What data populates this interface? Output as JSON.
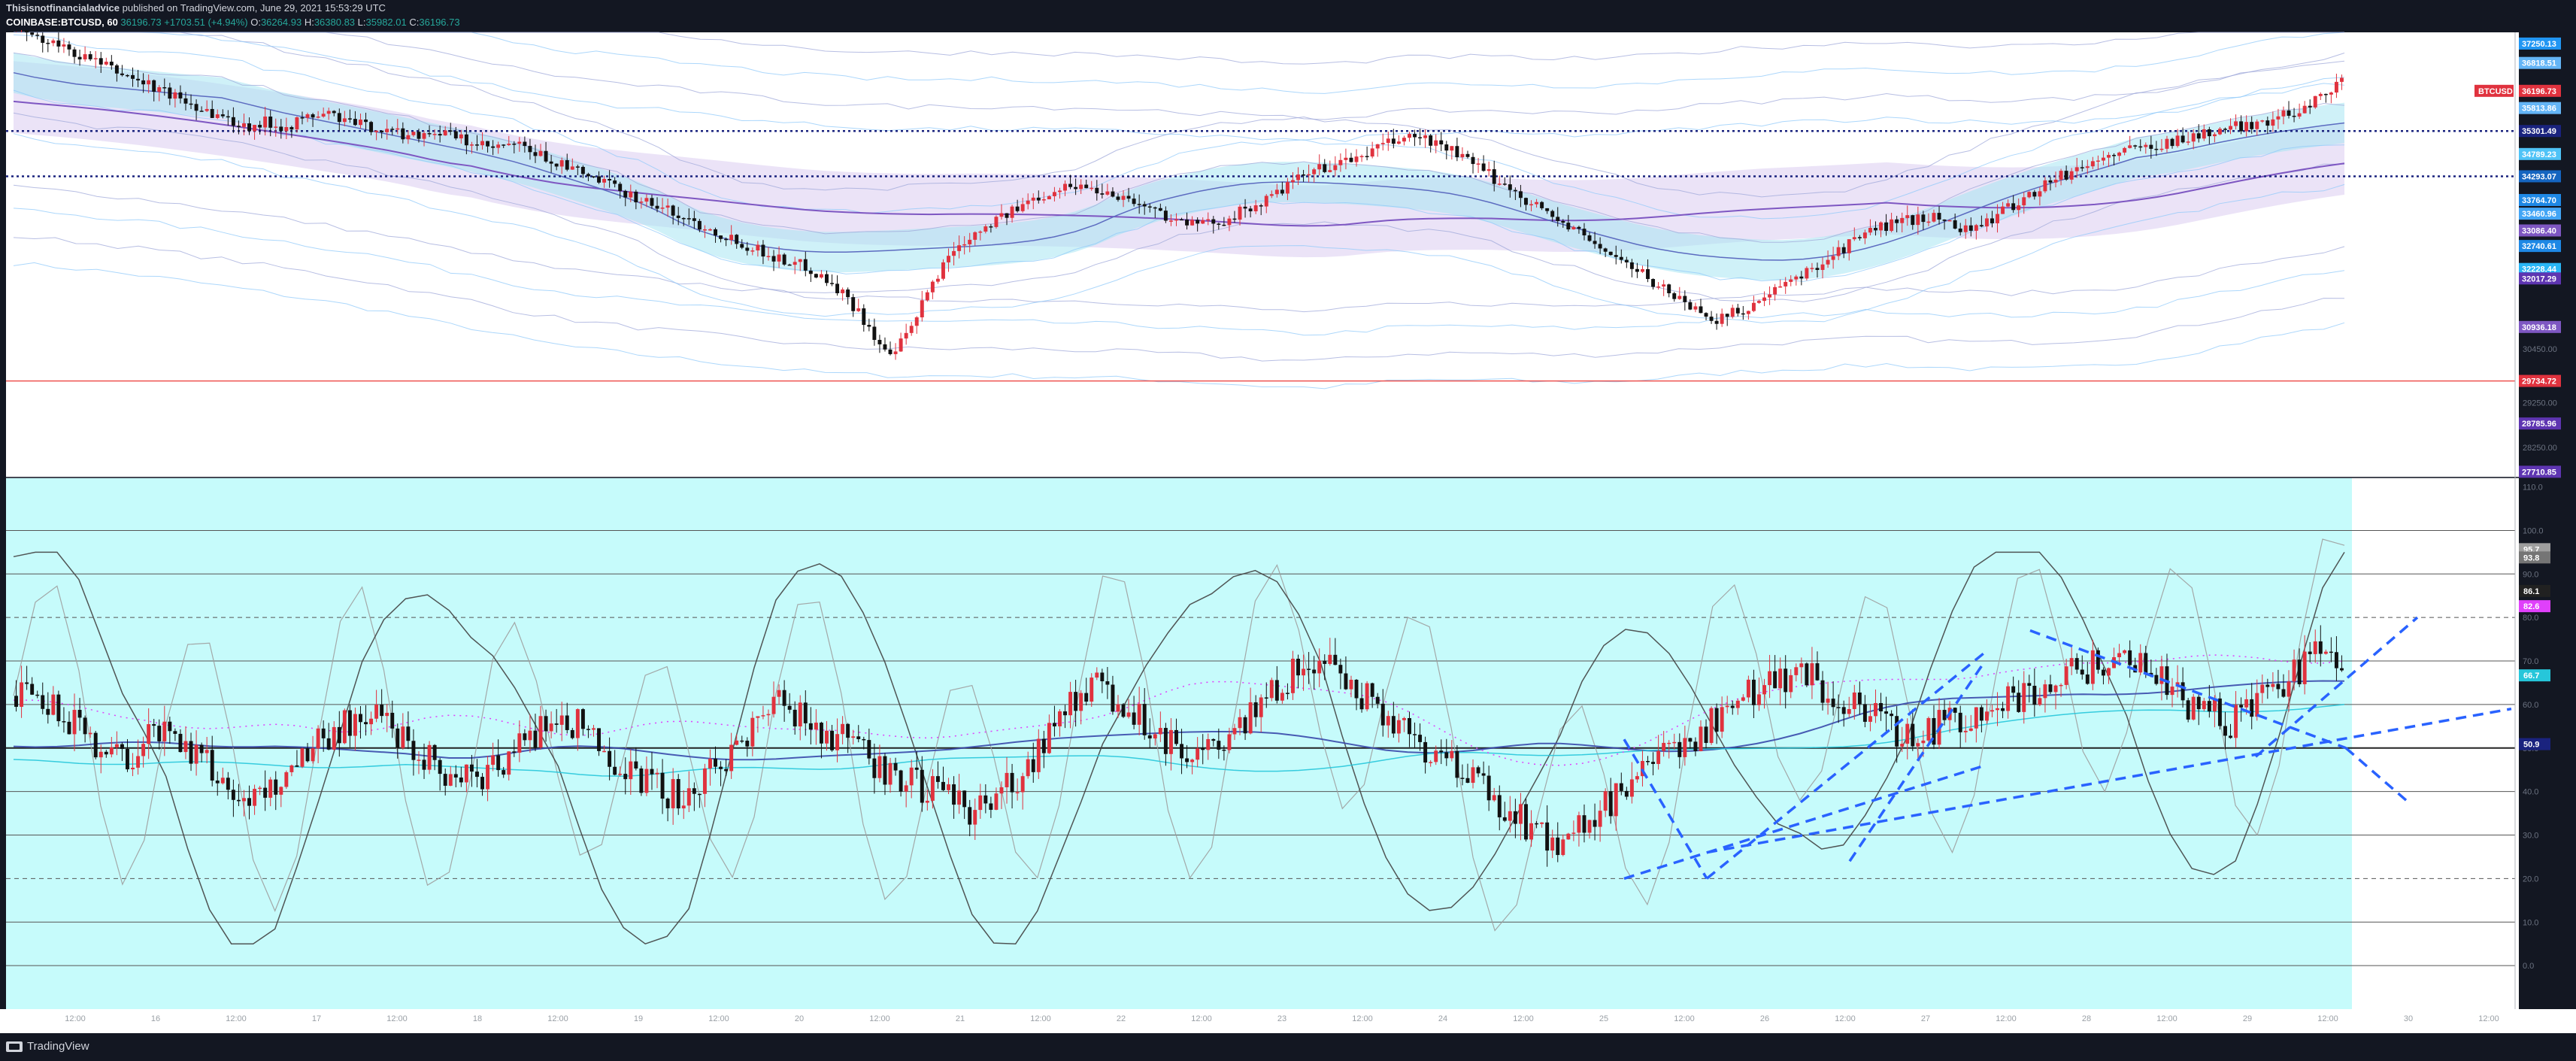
{
  "header": {
    "author": "Thisisnotfinancialadvice",
    "published": "published on TradingView.com, June 29, 2021 15:53:29 UTC",
    "symbol": "COINBASE:BTCUSD, 60",
    "price": "36196.73",
    "change": "+1703.51 (+4.94%)",
    "ohlc_o": "O:",
    "ohlc_o_val": "36264.93",
    "ohlc_h": "H:",
    "ohlc_h_val": "36380.83",
    "ohlc_l": "L:",
    "ohlc_l_val": "35982.01",
    "ohlc_c": "C:",
    "ohlc_c_val": "36196.73"
  },
  "footer": {
    "brand": "TradingView"
  },
  "colors": {
    "background": "#ffffff",
    "oscillator_bg": "#c6fbfb",
    "up": "#e0323e",
    "down": "#111111",
    "band_fill": "#e6dcf5",
    "cyan_fill": "#a8e6f2",
    "trendline": "#2962ff",
    "support_line": "#ef5350"
  },
  "chart_data": [
    {
      "type": "candlestick",
      "name": "BTCUSD",
      "x_tick_labels": [
        "12:00",
        "16",
        "12:00",
        "17",
        "12:00",
        "18",
        "12:00",
        "19",
        "12:00",
        "20",
        "12:00",
        "21",
        "12:00",
        "22",
        "12:00",
        "23",
        "12:00",
        "24",
        "12:00",
        "25",
        "12:00",
        "26",
        "12:00",
        "27",
        "12:00",
        "28",
        "12:00",
        "29",
        "12:00",
        "30",
        "12:00"
      ],
      "y_ticks": [
        28250.0,
        29250.0,
        30450.0
      ],
      "ylim": [
        27600,
        37500
      ],
      "series_close_path": [
        37600,
        37400,
        37200,
        37000,
        36800,
        36600,
        36400,
        36200,
        36000,
        35800,
        35600,
        35400,
        35500,
        35400,
        35600,
        35700,
        35500,
        35400,
        35300,
        35200,
        35300,
        35200,
        35000,
        34900,
        35000,
        34800,
        34600,
        34400,
        34200,
        34000,
        33800,
        33600,
        33400,
        33200,
        33000,
        32800,
        32600,
        32400,
        32300,
        32000,
        31600,
        31000,
        30200,
        30800,
        31800,
        32600,
        33000,
        33300,
        33500,
        33800,
        34000,
        34100,
        34000,
        33900,
        33700,
        33500,
        33300,
        33200,
        33300,
        33500,
        33700,
        34000,
        34300,
        34500,
        34600,
        34800,
        35000,
        35200,
        35100,
        34900,
        34600,
        34300,
        34000,
        33700,
        33400,
        33100,
        32800,
        32500,
        32200,
        31900,
        31600,
        31300,
        31100,
        31300,
        31500,
        31800,
        32100,
        32400,
        32700,
        33000,
        33200,
        33300,
        33400,
        33300,
        33100,
        33300,
        33600,
        33900,
        34200,
        34400,
        34600,
        34800,
        34900,
        35000,
        35100,
        35200,
        35300,
        35400,
        35500,
        35600,
        35800,
        36100,
        36400
      ],
      "price_labels": [
        {
          "text": "BTCUSD",
          "value": 36196.73,
          "color": "#e0323e",
          "pair": "36196.73"
        },
        {
          "text": "37250.13",
          "value": 37250.13,
          "color": "#2196f3"
        },
        {
          "text": "36818.51",
          "value": 36818.51,
          "color": "#64b5f6"
        },
        {
          "text": "35813.86",
          "value": 35813.86,
          "color": "#64b5f6"
        },
        {
          "text": "35301.49",
          "value": 35301.49,
          "color": "#1a237e"
        },
        {
          "text": "34789.23",
          "value": 34789.23,
          "color": "#4fc3f7"
        },
        {
          "text": "34293.07",
          "value": 34293.07,
          "color": "#1565c0"
        },
        {
          "text": "33764.70",
          "value": 33764.7,
          "color": "#1e88e5"
        },
        {
          "text": "33460.96",
          "value": 33460.96,
          "color": "#42a5f5"
        },
        {
          "text": "33086.40",
          "value": 33086.4,
          "color": "#7e57c2"
        },
        {
          "text": "32740.61",
          "value": 32740.61,
          "color": "#1e88e5"
        },
        {
          "text": "32228.44",
          "value": 32228.44,
          "color": "#29b6f6"
        },
        {
          "text": "32017.29",
          "value": 32017.29,
          "color": "#5e35b1"
        },
        {
          "text": "30936.18",
          "value": 30936.18,
          "color": "#7e57c2"
        },
        {
          "text": "29734.72",
          "value": 29734.72,
          "color": "#e0323e"
        },
        {
          "text": "28785.96",
          "value": 28785.96,
          "color": "#5e35b1"
        },
        {
          "text": "27710.85",
          "value": 27710.85,
          "color": "#5e35b1"
        }
      ],
      "horizontal_lines": [
        {
          "value": 35301.49,
          "style": "dotted",
          "color": "#1a237e"
        },
        {
          "value": 34293.07,
          "style": "dotted",
          "color": "#1a237e"
        },
        {
          "value": 29734.72,
          "style": "solid",
          "color": "#ef5350"
        }
      ]
    },
    {
      "type": "oscillator",
      "y_ticks": [
        110.0,
        100.0,
        90.0,
        80.0,
        70.0,
        60.0,
        50.0,
        40.0,
        30.0,
        20.0,
        10.0,
        0.0
      ],
      "ylim": [
        -10,
        112
      ],
      "levels": [
        100,
        90,
        80,
        70,
        60,
        50,
        40,
        30,
        20,
        10,
        0
      ],
      "dashed_levels": [
        80,
        20
      ],
      "osc_path": [
        62,
        60,
        58,
        55,
        50,
        48,
        52,
        55,
        50,
        45,
        40,
        38,
        42,
        48,
        52,
        55,
        58,
        56,
        52,
        48,
        44,
        42,
        46,
        50,
        54,
        58,
        55,
        50,
        46,
        42,
        40,
        38,
        44,
        50,
        56,
        60,
        58,
        55,
        52,
        48,
        45,
        42,
        40,
        38,
        36,
        38,
        42,
        50,
        58,
        62,
        64,
        60,
        56,
        52,
        50,
        48,
        52,
        58,
        64,
        68,
        70,
        66,
        62,
        58,
        54,
        50,
        46,
        42,
        38,
        34,
        30,
        28,
        32,
        36,
        40,
        44,
        48,
        52,
        56,
        60,
        64,
        66,
        68,
        64,
        60,
        58,
        55,
        52,
        54,
        56,
        58,
        60,
        62,
        64,
        66,
        68,
        70,
        72,
        68,
        64,
        60,
        58,
        56,
        60,
        64,
        68,
        72,
        70
      ],
      "price_labels": [
        {
          "text": "95.7",
          "value": 95.7,
          "color": "#9e9e9e"
        },
        {
          "text": "93.8",
          "value": 93.8,
          "color": "#757575"
        },
        {
          "text": "86.1",
          "value": 86.1,
          "color": "#212121"
        },
        {
          "text": "82.6",
          "value": 82.6,
          "color": "#e040fb"
        },
        {
          "text": "66.7",
          "value": 66.7,
          "color": "#26c6da"
        },
        {
          "text": "50.9",
          "value": 50.9,
          "color": "#1a237e"
        }
      ]
    }
  ]
}
